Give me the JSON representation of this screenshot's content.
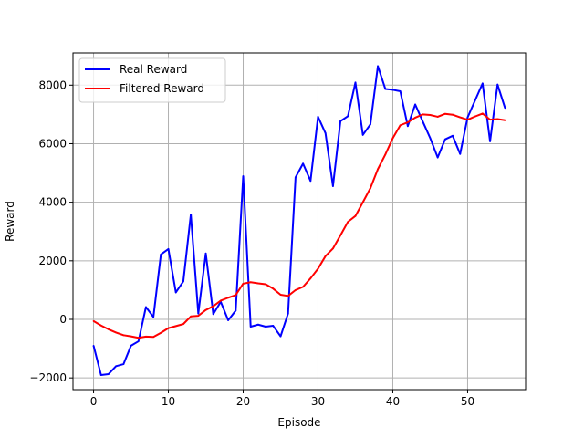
{
  "chart_data": {
    "type": "line",
    "title": "",
    "xlabel": "Episode",
    "ylabel": "Reward",
    "xlim": [
      -2.75,
      57.75
    ],
    "ylim": [
      -2400,
      9100
    ],
    "xticks": [
      0,
      10,
      20,
      30,
      40,
      50
    ],
    "yticks": [
      -2000,
      0,
      2000,
      4000,
      6000,
      8000
    ],
    "grid": true,
    "legend_position": "upper-left",
    "x": [
      0,
      1,
      2,
      3,
      4,
      5,
      6,
      7,
      8,
      9,
      10,
      11,
      12,
      13,
      14,
      15,
      16,
      17,
      18,
      19,
      20,
      21,
      22,
      23,
      24,
      25,
      26,
      27,
      28,
      29,
      30,
      31,
      32,
      33,
      34,
      35,
      36,
      37,
      38,
      39,
      40,
      41,
      42,
      43,
      44,
      45,
      46,
      47,
      48,
      49,
      50,
      51,
      52,
      53,
      54,
      55
    ],
    "series": [
      {
        "name": "Real Reward",
        "color": "#0000ff",
        "values": [
          -900,
          -1900,
          -1870,
          -1600,
          -1530,
          -900,
          -750,
          420,
          80,
          2220,
          2400,
          920,
          1300,
          3580,
          200,
          2250,
          180,
          600,
          -30,
          300,
          4890,
          -250,
          -180,
          -250,
          -220,
          -580,
          200,
          4850,
          5320,
          4730,
          6920,
          6360,
          4550,
          6770,
          6940,
          8090,
          6300,
          6660,
          8650,
          7870,
          7840,
          7790,
          6600,
          7340,
          6760,
          6190,
          5530,
          6150,
          6270,
          5650,
          6900,
          7480,
          8060,
          6080,
          8020,
          7220
        ]
      },
      {
        "name": "Filtered Reward",
        "color": "#ff0000",
        "values": [
          -60,
          -210,
          -340,
          -450,
          -540,
          -580,
          -630,
          -590,
          -600,
          -460,
          -300,
          -230,
          -160,
          100,
          120,
          320,
          450,
          640,
          740,
          830,
          1220,
          1270,
          1230,
          1200,
          1050,
          840,
          800,
          1000,
          1110,
          1400,
          1730,
          2160,
          2420,
          2870,
          3330,
          3530,
          4000,
          4480,
          5130,
          5630,
          6190,
          6630,
          6730,
          6890,
          7000,
          6980,
          6920,
          7020,
          6990,
          6900,
          6820,
          6930,
          7030,
          6820,
          6840,
          6800
        ]
      }
    ]
  }
}
